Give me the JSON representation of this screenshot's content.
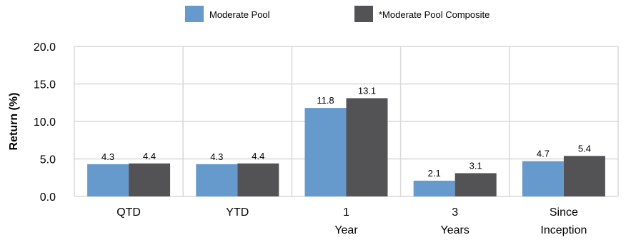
{
  "chart_data": {
    "type": "bar",
    "categories": [
      "QTD",
      "YTD",
      "1\nYear",
      "3\nYears",
      "Since\nInception"
    ],
    "series": [
      {
        "name": "Moderate Pool",
        "values": [
          4.3,
          4.3,
          11.8,
          2.1,
          4.7
        ],
        "color": "#6699cc"
      },
      {
        "name": "*Moderate Pool Composite",
        "values": [
          4.4,
          4.4,
          13.1,
          3.1,
          5.4
        ],
        "color": "#535356"
      }
    ],
    "title": "",
    "xlabel": "",
    "ylabel": "Return (%)",
    "ylim": [
      0,
      20
    ],
    "yticks": [
      "0.0",
      "5.0",
      "10.0",
      "15.0",
      "20.0"
    ],
    "grid": true,
    "legend_position": "top-center"
  }
}
